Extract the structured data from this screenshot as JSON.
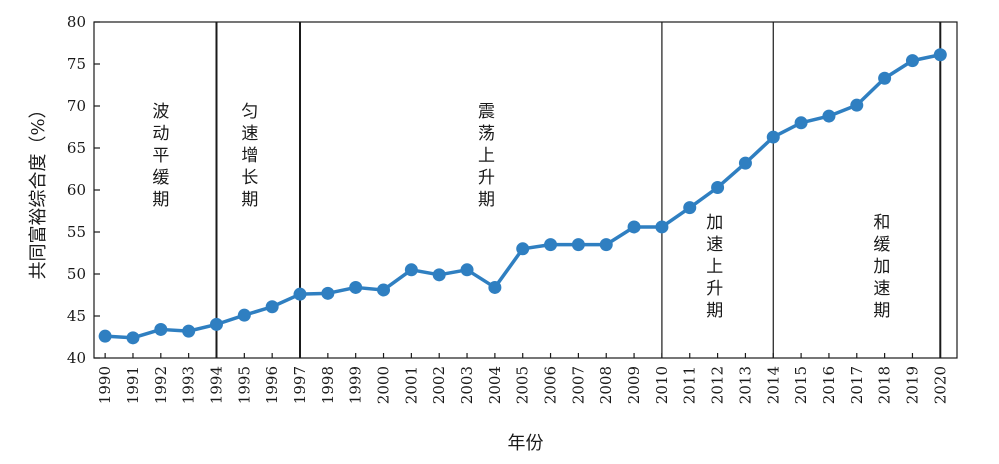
{
  "chart_data": {
    "type": "line",
    "xlabel": "年份",
    "ylabel": "共同富裕综合度（%）",
    "ylim": [
      40,
      80
    ],
    "yticks": [
      40,
      45,
      50,
      55,
      60,
      65,
      70,
      75,
      80
    ],
    "x": [
      1990,
      1991,
      1992,
      1993,
      1994,
      1995,
      1996,
      1997,
      1998,
      1999,
      2000,
      2001,
      2002,
      2003,
      2004,
      2005,
      2006,
      2007,
      2008,
      2009,
      2010,
      2011,
      2012,
      2013,
      2014,
      2015,
      2016,
      2017,
      2018,
      2019,
      2020
    ],
    "xtick_labels": [
      "1990",
      "1991",
      "1992",
      "1993",
      "1994",
      "1995",
      "1996",
      "1997",
      "1998",
      "1999",
      "2000",
      "2001",
      "2002",
      "2003",
      "2004",
      "2005",
      "2006",
      "2007",
      "2008",
      "2009",
      "2010",
      "2011",
      "2012",
      "2013",
      "2014",
      "2015",
      "2016",
      "2017",
      "2018",
      "2019",
      "2020"
    ],
    "series": [
      {
        "color": "#2f7fc1",
        "values": [
          42.6,
          42.4,
          43.4,
          43.2,
          44.0,
          45.1,
          46.1,
          47.6,
          47.7,
          48.4,
          48.1,
          50.5,
          49.9,
          50.5,
          48.4,
          53.0,
          53.5,
          53.5,
          53.5,
          55.6,
          55.6,
          57.9,
          60.3,
          63.2,
          66.3,
          68.0,
          68.8,
          70.1,
          73.3,
          75.4,
          76.1
        ]
      }
    ],
    "phase_boundaries": [
      1994,
      1997,
      2010,
      2014,
      2020
    ],
    "phases": [
      {
        "label": "波动平缓期",
        "x": 1992
      },
      {
        "label": "匀速增长期",
        "x": 1995.2
      },
      {
        "label": "震荡上升期",
        "x": 2003.7
      },
      {
        "label": "加速上升期",
        "x": 2011.9
      },
      {
        "label": "和缓加速期",
        "x": 2017.9
      }
    ],
    "grid": false,
    "legend": "none"
  }
}
